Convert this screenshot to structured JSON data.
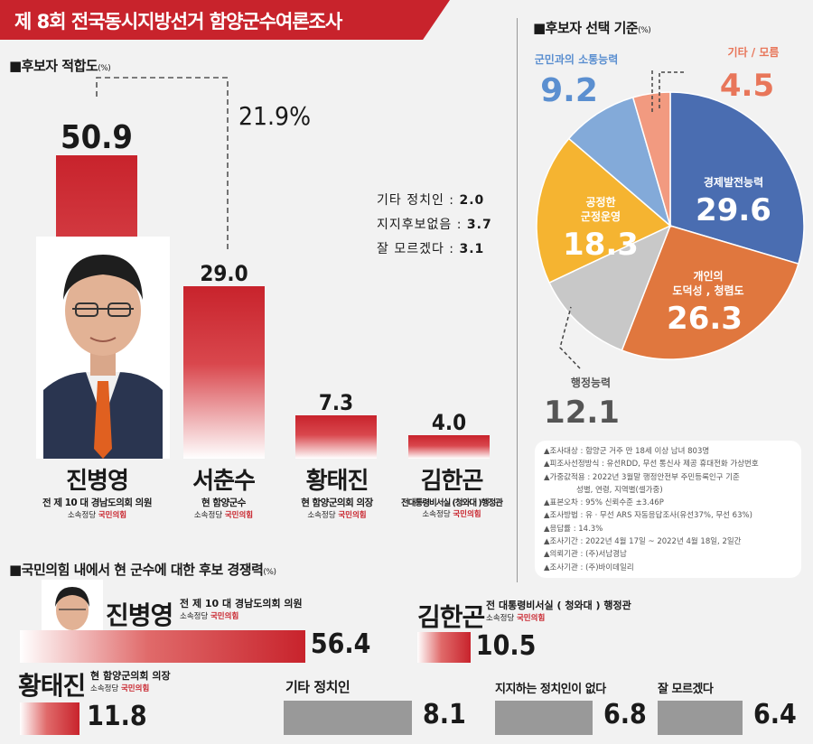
{
  "header": {
    "title": "제 8회 전국동시지방선거 함양군수여론조사"
  },
  "fitness": {
    "title": "■후보자 적합도",
    "unit": "(%)",
    "others": [
      {
        "label": "기타 정치인",
        "value": "2.0"
      },
      {
        "label": "지지후보없음",
        "value": "3.7"
      },
      {
        "label": "잘 모르겠다",
        "value": "3.1"
      }
    ],
    "candidates": [
      {
        "name": "진병영",
        "title": "전 제 10 대 경남도의회 의원",
        "party_label": "소속정당",
        "party": "국민의힘"
      },
      {
        "name": "서춘수",
        "title": "현 함양군수",
        "party_label": "소속정당",
        "party": "국민의힘"
      },
      {
        "name": "황태진",
        "title": "현 함양군의회 의장",
        "party_label": "소속정당",
        "party": "국민의힘"
      },
      {
        "name": "김한곤",
        "title": "전대통령비서실 (청와대 )행정관",
        "party_label": "소속정당",
        "party": "국민의힘"
      }
    ]
  },
  "criteria": {
    "title": "■후보자 선택 기준",
    "unit": "(%)"
  },
  "competitiveness": {
    "title": "■국민의힘 내에서 현 군수에 대한 후보 경쟁력",
    "unit": "(%)"
  },
  "competitors": [
    {
      "name": "진병영",
      "title": "전 제 10 대 경남도의회 의원",
      "party_label": "소속정당",
      "party": "국민의힘"
    },
    {
      "name": "김한곤",
      "title": "전 대통령비서실 ( 청와대 ) 행정관",
      "party_label": "소속정당",
      "party": "국민의힘"
    },
    {
      "name": "황태진",
      "title": "현 함양군의회 의장",
      "party_label": "소속정당",
      "party": "국민의힘"
    }
  ],
  "methodology": [
    "▲조사대상 : 함양군 거주 만 18세 이상 남녀 803명",
    "▲피조사선정방식 : 유선RDD, 무선 통신사 제공 휴대전화 가상번호",
    "▲가중값적용 : 2022년 3월말 행정안전부 주민등록인구 기준",
    "성별, 연령, 지역별(셀가중)",
    "▲표본오차 : 95% 신뢰수준 ±3.46P",
    "▲조사방법 : 유 · 무선 ARS 자동응답조사(유선37%, 무선 63%)",
    "▲응답률 : 14.3%",
    "▲조사기간 : 2022년 4월 17일 ~ 2022년 4월 18일, 2일간",
    "▲의뢰기관 : (주)서남경남",
    "▲조사기관 : (주)바이데일리"
  ],
  "chart_data": [
    {
      "type": "bar",
      "title": "후보자 적합도",
      "unit": "%",
      "categories": [
        "진병영",
        "서춘수",
        "황태진",
        "김한곤"
      ],
      "values": [
        50.9,
        29.0,
        7.3,
        4.0
      ],
      "labels": [
        "50.9",
        "29.0",
        "7.3",
        "4.0"
      ],
      "gap_annotation": "21.9%",
      "ylim": [
        0,
        55
      ]
    },
    {
      "type": "pie",
      "title": "후보자 선택 기준",
      "unit": "%",
      "slices": [
        {
          "label": "경제발전능력",
          "value": 29.6,
          "text": "29.6",
          "color": "#4a6db1"
        },
        {
          "label": "개인의 도덕성 , 청렴도",
          "value": 26.3,
          "text": "26.3",
          "color": "#e0773e"
        },
        {
          "label": "행정능력",
          "value": 12.1,
          "text": "12.1",
          "color": "#c8c8c8"
        },
        {
          "label": "공정한 군정운영",
          "value": 18.3,
          "text": "18.3",
          "color": "#f5b431"
        },
        {
          "label": "군민과의 소통능력",
          "value": 9.2,
          "text": "9.2",
          "color": "#83aad9"
        },
        {
          "label": "기타 / 모름",
          "value": 4.5,
          "text": "4.5",
          "color": "#f29a80"
        }
      ]
    },
    {
      "type": "bar",
      "orientation": "horizontal",
      "title": "국민의힘 내에서 현 군수에 대한 후보 경쟁력",
      "unit": "%",
      "categories": [
        "진병영",
        "김한곤",
        "황태진",
        "기타 정치인",
        "지지하는 정치인이 없다",
        "잘 모르겠다"
      ],
      "values": [
        56.4,
        10.5,
        11.8,
        8.1,
        6.8,
        6.4
      ],
      "labels": [
        "56.4",
        "10.5",
        "11.8",
        "8.1",
        "6.8",
        "6.4"
      ]
    }
  ]
}
